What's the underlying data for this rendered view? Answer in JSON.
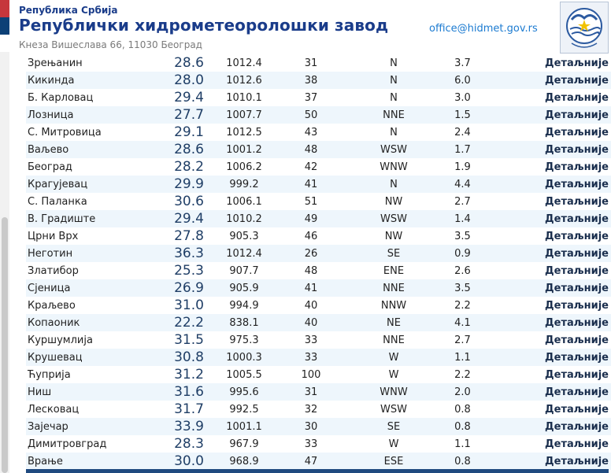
{
  "header": {
    "republic": "Република Србија",
    "institute": "Републички хидрометеоролошки завод",
    "address": "Кнеза Вишеслава 66, 11030 Београд",
    "email": "office@hidmet.gov.rs",
    "flag_colors": [
      "#c6363c",
      "#0c4076",
      "#ffffff"
    ]
  },
  "colors": {
    "brand": "#1a3c8a",
    "email": "#1c7bd1",
    "row_alt": "#eef6fc",
    "bottom_bar": "#1f4a7f"
  },
  "details_label": "Детаљније",
  "rows": [
    {
      "station": "Зрењанин",
      "temp": "28.6",
      "pressure": "1012.4",
      "humidity": "31",
      "wind_dir": "N",
      "wind_speed": "3.7"
    },
    {
      "station": "Кикинда",
      "temp": "28.0",
      "pressure": "1012.6",
      "humidity": "38",
      "wind_dir": "N",
      "wind_speed": "6.0"
    },
    {
      "station": "Б. Карловац",
      "temp": "29.4",
      "pressure": "1010.1",
      "humidity": "37",
      "wind_dir": "N",
      "wind_speed": "3.0"
    },
    {
      "station": "Лозница",
      "temp": "27.7",
      "pressure": "1007.7",
      "humidity": "50",
      "wind_dir": "NNE",
      "wind_speed": "1.5"
    },
    {
      "station": "С. Митровица",
      "temp": "29.1",
      "pressure": "1012.5",
      "humidity": "43",
      "wind_dir": "N",
      "wind_speed": "2.4"
    },
    {
      "station": "Ваљево",
      "temp": "28.6",
      "pressure": "1001.2",
      "humidity": "48",
      "wind_dir": "WSW",
      "wind_speed": "1.7"
    },
    {
      "station": "Београд",
      "temp": "28.2",
      "pressure": "1006.2",
      "humidity": "42",
      "wind_dir": "WNW",
      "wind_speed": "1.9"
    },
    {
      "station": "Крагујевац",
      "temp": "29.9",
      "pressure": "999.2",
      "humidity": "41",
      "wind_dir": "N",
      "wind_speed": "4.4"
    },
    {
      "station": "С. Паланка",
      "temp": "30.6",
      "pressure": "1006.1",
      "humidity": "51",
      "wind_dir": "NW",
      "wind_speed": "2.7"
    },
    {
      "station": "В. Градиште",
      "temp": "29.4",
      "pressure": "1010.2",
      "humidity": "49",
      "wind_dir": "WSW",
      "wind_speed": "1.4"
    },
    {
      "station": "Црни Врх",
      "temp": "27.8",
      "pressure": "905.3",
      "humidity": "46",
      "wind_dir": "NW",
      "wind_speed": "3.5"
    },
    {
      "station": "Неготин",
      "temp": "36.3",
      "pressure": "1012.4",
      "humidity": "26",
      "wind_dir": "SE",
      "wind_speed": "0.9"
    },
    {
      "station": "Златибор",
      "temp": "25.3",
      "pressure": "907.7",
      "humidity": "48",
      "wind_dir": "ENE",
      "wind_speed": "2.6"
    },
    {
      "station": "Сјеница",
      "temp": "26.9",
      "pressure": "905.9",
      "humidity": "41",
      "wind_dir": "NNE",
      "wind_speed": "3.5"
    },
    {
      "station": "Краљево",
      "temp": "31.0",
      "pressure": "994.9",
      "humidity": "40",
      "wind_dir": "NNW",
      "wind_speed": "2.2"
    },
    {
      "station": "Копаоник",
      "temp": "22.2",
      "pressure": "838.1",
      "humidity": "40",
      "wind_dir": "NE",
      "wind_speed": "4.1"
    },
    {
      "station": "Куршумлија",
      "temp": "31.5",
      "pressure": "975.3",
      "humidity": "33",
      "wind_dir": "NNE",
      "wind_speed": "2.7"
    },
    {
      "station": "Крушевац",
      "temp": "30.8",
      "pressure": "1000.3",
      "humidity": "33",
      "wind_dir": "W",
      "wind_speed": "1.1"
    },
    {
      "station": "Ћуприја",
      "temp": "31.2",
      "pressure": "1005.5",
      "humidity": "100",
      "wind_dir": "W",
      "wind_speed": "2.2"
    },
    {
      "station": "Ниш",
      "temp": "31.6",
      "pressure": "995.6",
      "humidity": "31",
      "wind_dir": "WNW",
      "wind_speed": "2.0"
    },
    {
      "station": "Лесковац",
      "temp": "31.7",
      "pressure": "992.5",
      "humidity": "32",
      "wind_dir": "WSW",
      "wind_speed": "0.8"
    },
    {
      "station": "Зајечар",
      "temp": "33.9",
      "pressure": "1001.1",
      "humidity": "30",
      "wind_dir": "SE",
      "wind_speed": "0.8"
    },
    {
      "station": "Димитровград",
      "temp": "28.3",
      "pressure": "967.9",
      "humidity": "33",
      "wind_dir": "W",
      "wind_speed": "1.1"
    },
    {
      "station": "Врање",
      "temp": "30.0",
      "pressure": "968.9",
      "humidity": "47",
      "wind_dir": "ESE",
      "wind_speed": "0.8"
    }
  ]
}
